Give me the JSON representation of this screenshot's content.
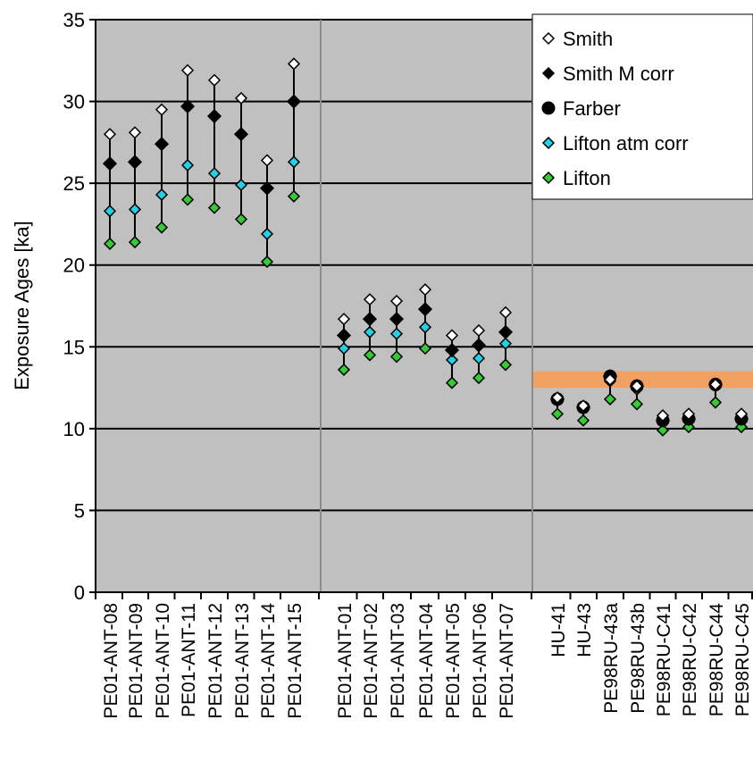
{
  "chart_data": {
    "type": "scatter",
    "ylabel": "Exposure Ages [ka]",
    "ylim": [
      0,
      35
    ],
    "yticks": [
      0,
      5,
      10,
      15,
      20,
      25,
      30,
      35
    ],
    "grid": true,
    "legend_position": "top-right",
    "colors": {
      "background": "#c0c0c0",
      "gridline": "#000000",
      "separator": "#8c8c8c",
      "band": "#f0a060",
      "smith_fill": "#ffffff",
      "smith_m_fill": "#000000",
      "farber_fill": "#000000",
      "lifton_atm_fill": "#22d0e8",
      "lifton_fill": "#33cc33"
    },
    "band": {
      "y_from": 12.5,
      "y_to": 13.5
    },
    "categories": [
      "PE01-ANT-08",
      "PE01-ANT-09",
      "PE01-ANT-10",
      "PE01-ANT-11",
      "PE01-ANT-12",
      "PE01-ANT-13",
      "PE01-ANT-14",
      "PE01-ANT-15",
      "PE01-ANT-01",
      "PE01-ANT-02",
      "PE01-ANT-03",
      "PE01-ANT-04",
      "PE01-ANT-05",
      "PE01-ANT-06",
      "PE01-ANT-07",
      "HU-41",
      "HU-43",
      "PE98RU-43a",
      "PE98RU-43b",
      "PE98RU-C41",
      "PE98RU-C42",
      "PE98RU-C44",
      "PE98RU-C45"
    ],
    "series": [
      {
        "name": "Smith",
        "marker": "diamond-open",
        "values": [
          28.0,
          28.1,
          29.5,
          31.9,
          31.3,
          30.2,
          26.4,
          32.3,
          16.7,
          17.9,
          17.8,
          18.5,
          15.7,
          16.0,
          17.1,
          11.9,
          11.4,
          13.0,
          12.6,
          10.8,
          10.9,
          12.7,
          10.9
        ]
      },
      {
        "name": "Smith M corr",
        "marker": "diamond-solid",
        "values": [
          26.2,
          26.3,
          27.4,
          29.7,
          29.1,
          28.0,
          24.7,
          30.0,
          15.7,
          16.7,
          16.7,
          17.3,
          14.8,
          15.1,
          15.9,
          11.8,
          11.3,
          13.2,
          12.6,
          10.5,
          10.6,
          12.7,
          10.6
        ]
      },
      {
        "name": "Farber",
        "marker": "circle",
        "values": [
          null,
          null,
          null,
          null,
          null,
          null,
          null,
          null,
          null,
          null,
          null,
          null,
          null,
          null,
          null,
          11.8,
          11.3,
          13.2,
          12.6,
          10.5,
          10.6,
          12.7,
          10.6
        ]
      },
      {
        "name": "Lifton atm corr",
        "marker": "diamond-cyan",
        "values": [
          23.3,
          23.4,
          24.3,
          26.1,
          25.6,
          24.9,
          21.9,
          26.3,
          14.9,
          15.9,
          15.8,
          16.2,
          14.2,
          14.3,
          15.2,
          11.7,
          11.3,
          12.9,
          12.4,
          10.8,
          10.9,
          12.6,
          10.9
        ]
      },
      {
        "name": "Lifton",
        "marker": "diamond-green",
        "values": [
          21.3,
          21.4,
          22.3,
          24.0,
          23.5,
          22.8,
          20.2,
          24.2,
          13.6,
          14.5,
          14.4,
          14.9,
          12.8,
          13.1,
          13.9,
          10.9,
          10.5,
          11.8,
          11.5,
          9.9,
          10.1,
          11.6,
          10.1
        ]
      }
    ]
  }
}
